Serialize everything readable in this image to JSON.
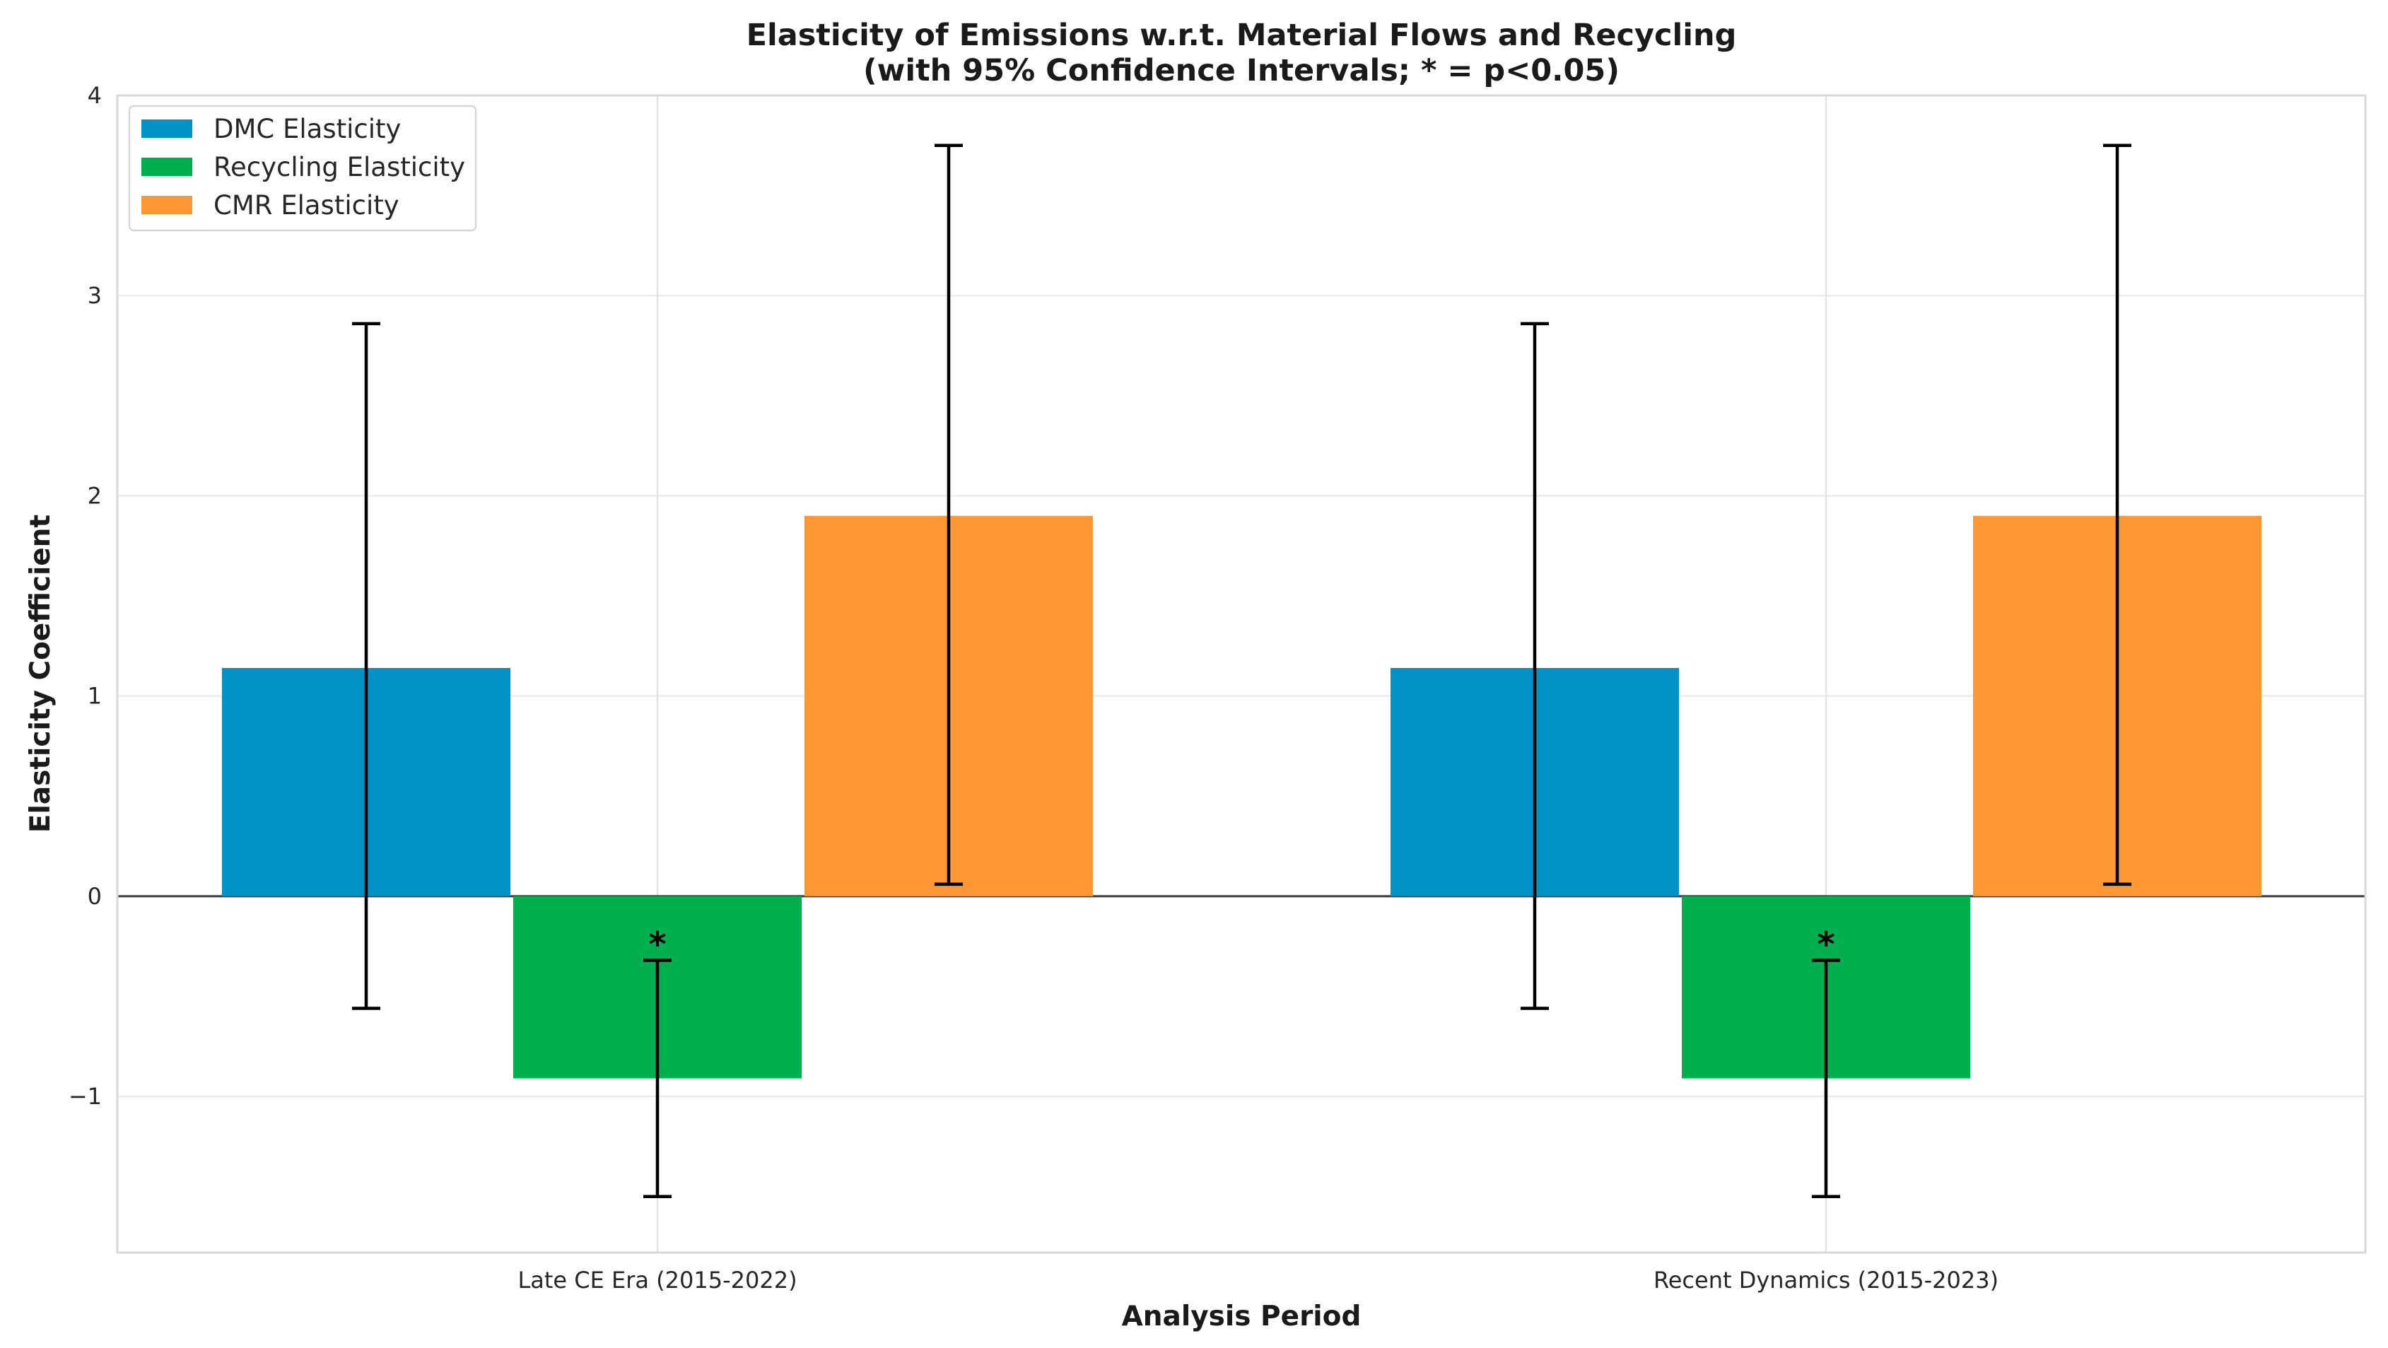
{
  "chart_data": {
    "type": "bar",
    "title_line1": "Elasticity of Emissions w.r.t. Material Flows and Recycling",
    "title_line2": "(with 95% Confidence Intervals; * = p<0.05)",
    "xlabel": "Analysis Period",
    "ylabel": "Elasticity Coefficient",
    "categories": [
      "Late CE Era (2015-2022)",
      "Recent Dynamics (2015-2023)"
    ],
    "ylim": [
      -1.78,
      4.0
    ],
    "yticks": [
      -1,
      0,
      1,
      2,
      3,
      4
    ],
    "ytick_labels": [
      "−1",
      "0",
      "1",
      "2",
      "3",
      "4"
    ],
    "grid": true,
    "legend_position": "top-left",
    "significance_marker": "*",
    "series": [
      {
        "name": "DMC Elasticity",
        "color": "#0092C6",
        "values": [
          1.14,
          1.14
        ],
        "ci_low": [
          -0.56,
          -0.56
        ],
        "ci_high": [
          2.86,
          2.86
        ],
        "significant": [
          false,
          false
        ]
      },
      {
        "name": "Recycling Elasticity",
        "color": "#00B04F",
        "values": [
          -0.91,
          -0.91
        ],
        "ci_low": [
          -1.5,
          -1.5
        ],
        "ci_high": [
          -0.32,
          -0.32
        ],
        "significant": [
          true,
          true
        ]
      },
      {
        "name": "CMR Elasticity",
        "color": "#FD9734",
        "values": [
          1.9,
          1.9
        ],
        "ci_low": [
          0.06,
          0.06
        ],
        "ci_high": [
          3.75,
          3.75
        ],
        "significant": [
          false,
          false
        ]
      }
    ]
  }
}
